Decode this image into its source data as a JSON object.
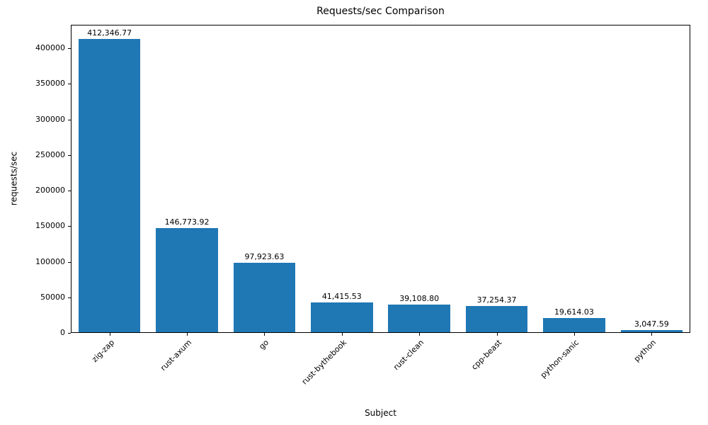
{
  "chart_data": {
    "type": "bar",
    "title": "Requests/sec Comparison",
    "xlabel": "Subject",
    "ylabel": "requests/sec",
    "categories": [
      "zig-zap",
      "rust-axum",
      "go",
      "rust-bythebook",
      "rust-clean",
      "cpp-beast",
      "python-sanic",
      "python"
    ],
    "values": [
      412346.77,
      146773.92,
      97923.63,
      41415.53,
      39108.8,
      37254.37,
      19614.03,
      3047.59
    ],
    "value_labels": [
      "412,346.77",
      "146,773.92",
      "97,923.63",
      "41,415.53",
      "39,108.80",
      "37,254.37",
      "19,614.03",
      "3,047.59"
    ],
    "yticks": [
      0,
      50000,
      100000,
      150000,
      200000,
      250000,
      300000,
      350000,
      400000
    ],
    "ylim": [
      0,
      433000
    ],
    "bar_color": "#1f77b4",
    "grid": false,
    "legend": "none"
  }
}
